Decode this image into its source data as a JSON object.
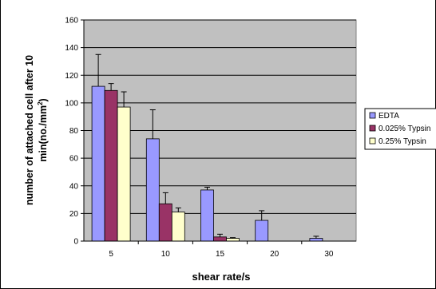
{
  "chart_data": {
    "type": "bar",
    "title": "",
    "xlabel": "shear rate/s",
    "ylabel_line1": "number of attached cell after 10",
    "ylabel_line2_prefix": "min(no./mm",
    "ylabel_line2_sup": "2",
    "ylabel_line2_suffix": ")",
    "categories": [
      "5",
      "10",
      "15",
      "20",
      "30"
    ],
    "ylim": [
      0,
      160
    ],
    "yticks": [
      "0",
      "20",
      "40",
      "60",
      "80",
      "100",
      "120",
      "140",
      "160"
    ],
    "grid": true,
    "legend_position": "right",
    "series": [
      {
        "name": "EDTA",
        "color": "#9999ff",
        "values": [
          112,
          74,
          37,
          15,
          2
        ],
        "errors": [
          23,
          21,
          2,
          7,
          1.5
        ]
      },
      {
        "name": "0.025% Typsin",
        "color": "#993366",
        "values": [
          109,
          27,
          3,
          0,
          0
        ],
        "errors": [
          5,
          8,
          2,
          0,
          0
        ]
      },
      {
        "name": "0.25% Typsin",
        "color": "#ffffcc",
        "values": [
          97,
          21,
          2,
          0,
          0
        ],
        "errors": [
          11,
          3,
          0.5,
          0,
          0
        ]
      }
    ]
  }
}
